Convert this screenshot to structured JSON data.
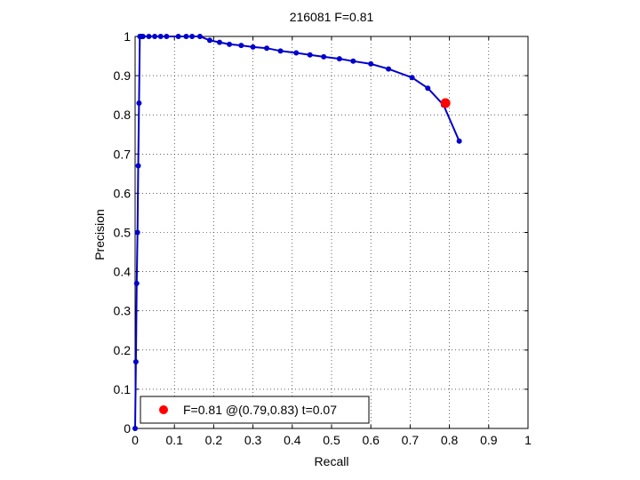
{
  "chart_data": {
    "type": "line",
    "title": "216081 F=0.81",
    "xlabel": "Recall",
    "ylabel": "Precision",
    "xlim": [
      0,
      1
    ],
    "ylim": [
      0,
      1
    ],
    "grid": true,
    "xticks": [
      0,
      0.1,
      0.2,
      0.3,
      0.4,
      0.5,
      0.6,
      0.7,
      0.8,
      0.9,
      1
    ],
    "xtick_labels": [
      "0",
      "0.1",
      "0.2",
      "0.3",
      "0.4",
      "0.5",
      "0.6",
      "0.7",
      "0.8",
      "0.9",
      "1"
    ],
    "yticks": [
      0,
      0.1,
      0.2,
      0.3,
      0.4,
      0.5,
      0.6,
      0.7,
      0.8,
      0.9,
      1
    ],
    "ytick_labels": [
      "0",
      "0.1",
      "0.2",
      "0.3",
      "0.4",
      "0.5",
      "0.6",
      "0.7",
      "0.8",
      "0.9",
      "1"
    ],
    "series": [
      {
        "color": "#0000cc",
        "x": [
          0,
          0.002,
          0.004,
          0.006,
          0.008,
          0.01,
          0.012,
          0.014,
          0.016,
          0.018,
          0.02,
          0.035,
          0.05,
          0.065,
          0.08,
          0.11,
          0.13,
          0.145,
          0.165,
          0.19,
          0.215,
          0.24,
          0.27,
          0.3,
          0.335,
          0.37,
          0.41,
          0.445,
          0.48,
          0.52,
          0.555,
          0.6,
          0.645,
          0.705,
          0.745,
          0.785,
          0.825
        ],
        "y": [
          0,
          0.17,
          0.37,
          0.5,
          0.67,
          0.83,
          1,
          1,
          1,
          1,
          1,
          1,
          1,
          1,
          1,
          1,
          1,
          1,
          1,
          0.99,
          0.985,
          0.98,
          0.977,
          0.973,
          0.97,
          0.963,
          0.958,
          0.953,
          0.948,
          0.943,
          0.937,
          0.93,
          0.917,
          0.895,
          0.868,
          0.825,
          0.733
        ]
      }
    ],
    "best_point": {
      "x": 0.79,
      "y": 0.83,
      "color": "#ff0000"
    },
    "legend": {
      "placement": "bottom-left",
      "label": "F=0.81 @(0.79,0.83) t=0.07"
    }
  }
}
